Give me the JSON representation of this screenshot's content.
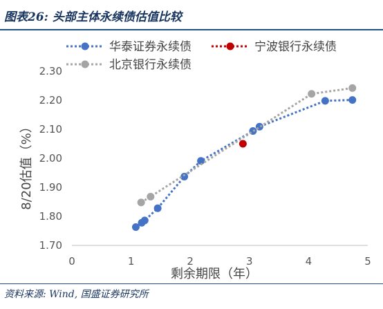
{
  "header": {
    "title": "图表26:  头部主体永续债估值比较"
  },
  "footer": {
    "source": "资料来源: Wind, 国盛证券研究所"
  },
  "chart_data": {
    "type": "scatter",
    "xlabel": "剩余期限（年）",
    "ylabel": "8/20估值（%）",
    "xlim": [
      0,
      5
    ],
    "ylim": [
      1.7,
      2.3
    ],
    "xticks": [
      "0",
      "1",
      "2",
      "3",
      "4",
      "5"
    ],
    "yticks": [
      "1.70",
      "1.80",
      "1.90",
      "2.00",
      "2.10",
      "2.20",
      "2.30"
    ],
    "grid": false,
    "legend_position": "top",
    "series": [
      {
        "name": "华泰证券永续债",
        "color": "#4472c4",
        "line": "dotted",
        "points": [
          {
            "x": 1.08,
            "y": 1.763
          },
          {
            "x": 1.18,
            "y": 1.778
          },
          {
            "x": 1.23,
            "y": 1.786
          },
          {
            "x": 1.45,
            "y": 1.828
          },
          {
            "x": 1.9,
            "y": 1.937
          },
          {
            "x": 2.18,
            "y": 1.991
          },
          {
            "x": 3.06,
            "y": 2.094
          },
          {
            "x": 3.17,
            "y": 2.109
          },
          {
            "x": 4.28,
            "y": 2.198
          },
          {
            "x": 4.74,
            "y": 2.201
          }
        ]
      },
      {
        "name": "宁波银行永续债",
        "color": "#c00000",
        "line": "dotted",
        "points": [
          {
            "x": 2.89,
            "y": 2.05
          }
        ]
      },
      {
        "name": "北京银行永续债",
        "color": "#a5a5a5",
        "line": "dotted",
        "points": [
          {
            "x": 1.17,
            "y": 1.848
          },
          {
            "x": 1.33,
            "y": 1.868
          },
          {
            "x": 4.05,
            "y": 2.222
          },
          {
            "x": 4.74,
            "y": 2.242
          }
        ]
      }
    ]
  }
}
